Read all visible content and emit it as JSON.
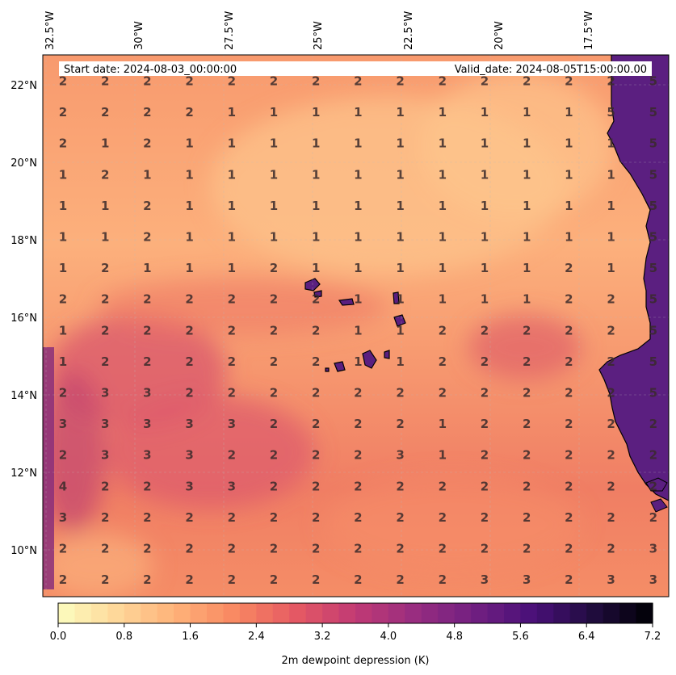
{
  "header": {
    "start_date": "Start date: 2024-08-03_00:00:00",
    "valid_date": "Valid_date: 2024-08-05T15:00:00.00"
  },
  "lon_labels": [
    "32.5°W",
    "30°W",
    "27.5°W",
    "25°W",
    "22.5°W",
    "20°W",
    "17.5°W"
  ],
  "lat_labels": [
    "22°N",
    "20°N",
    "18°N",
    "16°N",
    "14°N",
    "12°N",
    "10°N"
  ],
  "colorbar": {
    "label": "2m dewpoint depression (K)",
    "ticks": [
      "0.0",
      "0.8",
      "1.6",
      "2.4",
      "3.2",
      "4.0",
      "4.8",
      "5.6",
      "6.4",
      "7.2"
    ],
    "min": 0.0,
    "max": 7.2,
    "levels": 36,
    "colormap": "magma_r"
  },
  "grid_values": [
    [
      "2",
      "2",
      "2",
      "2",
      "2",
      "2",
      "2",
      "2",
      "2",
      "2",
      "2",
      "2",
      "2",
      "2",
      "5"
    ],
    [
      "2",
      "2",
      "2",
      "2",
      "1",
      "1",
      "1",
      "1",
      "1",
      "1",
      "1",
      "1",
      "1",
      "5",
      "5"
    ],
    [
      "2",
      "1",
      "2",
      "1",
      "1",
      "1",
      "1",
      "1",
      "1",
      "1",
      "1",
      "1",
      "1",
      "1",
      "5"
    ],
    [
      "1",
      "2",
      "1",
      "1",
      "1",
      "1",
      "1",
      "1",
      "1",
      "1",
      "1",
      "1",
      "1",
      "1",
      "5"
    ],
    [
      "1",
      "1",
      "2",
      "1",
      "1",
      "1",
      "1",
      "1",
      "1",
      "1",
      "1",
      "1",
      "1",
      "1",
      "5"
    ],
    [
      "1",
      "1",
      "2",
      "1",
      "1",
      "1",
      "1",
      "1",
      "1",
      "1",
      "1",
      "1",
      "1",
      "1",
      "5"
    ],
    [
      "1",
      "2",
      "1",
      "1",
      "1",
      "2",
      "1",
      "1",
      "1",
      "1",
      "1",
      "1",
      "2",
      "1",
      "5"
    ],
    [
      "2",
      "2",
      "2",
      "2",
      "2",
      "2",
      "2",
      "1",
      "1",
      "1",
      "1",
      "1",
      "2",
      "2",
      "5"
    ],
    [
      "1",
      "2",
      "2",
      "2",
      "2",
      "2",
      "2",
      "1",
      "1",
      "2",
      "2",
      "2",
      "2",
      "2",
      "5"
    ],
    [
      "1",
      "2",
      "2",
      "2",
      "2",
      "2",
      "2",
      "1",
      "1",
      "2",
      "2",
      "2",
      "2",
      "2",
      "5"
    ],
    [
      "2",
      "3",
      "3",
      "2",
      "2",
      "2",
      "2",
      "2",
      "2",
      "2",
      "2",
      "2",
      "2",
      "2",
      "5"
    ],
    [
      "3",
      "3",
      "3",
      "3",
      "3",
      "2",
      "2",
      "2",
      "2",
      "1",
      "2",
      "2",
      "2",
      "2",
      "2"
    ],
    [
      "2",
      "3",
      "3",
      "3",
      "2",
      "2",
      "2",
      "2",
      "3",
      "1",
      "2",
      "2",
      "2",
      "2",
      "2"
    ],
    [
      "4",
      "2",
      "2",
      "3",
      "3",
      "2",
      "2",
      "2",
      "2",
      "2",
      "2",
      "2",
      "2",
      "2",
      "2"
    ],
    [
      "3",
      "2",
      "2",
      "2",
      "2",
      "2",
      "2",
      "2",
      "2",
      "2",
      "2",
      "2",
      "2",
      "2",
      "2"
    ],
    [
      "2",
      "2",
      "2",
      "2",
      "2",
      "2",
      "2",
      "2",
      "2",
      "2",
      "2",
      "2",
      "2",
      "2",
      "3"
    ],
    [
      "2",
      "2",
      "2",
      "2",
      "2",
      "2",
      "2",
      "2",
      "2",
      "2",
      "3",
      "3",
      "2",
      "3",
      "3"
    ]
  ],
  "colors": {
    "ocean_light": "#fcb47f",
    "ocean_mid": "#f68f6b",
    "ocean_dark": "#d9536b",
    "land": "#5a1f80"
  }
}
